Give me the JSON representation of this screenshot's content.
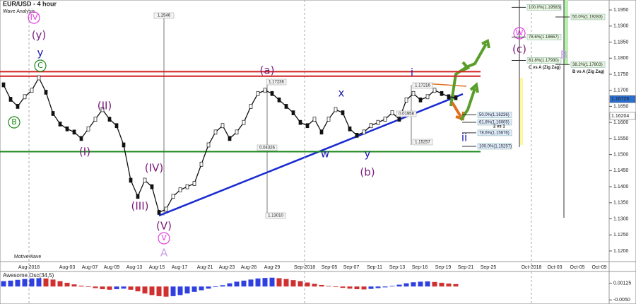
{
  "chart_data": [
    {
      "type": "line",
      "title": "EUR/USD - 4 hour",
      "subtitle": "Wave Analysis",
      "watermark": "MotiveWave",
      "color": "#111111",
      "values": [
        1.1717,
        1.1672,
        1.165,
        1.168,
        1.17,
        1.1739,
        1.1694,
        1.1628,
        1.1595,
        1.158,
        1.157,
        1.155,
        1.158,
        1.161,
        1.164,
        1.161,
        1.159,
        1.153,
        1.142,
        1.137,
        1.142,
        1.14,
        1.132,
        1.133,
        1.137,
        1.139,
        1.14,
        1.141,
        1.147,
        1.153,
        1.157,
        1.159,
        1.155,
        1.157,
        1.16,
        1.165,
        1.169,
        1.17,
        1.169,
        1.167,
        1.165,
        1.163,
        1.16,
        1.159,
        1.161,
        1.157,
        1.161,
        1.164,
        1.163,
        1.158,
        1.156,
        1.157,
        1.159,
        1.16,
        1.161,
        1.163,
        1.161,
        1.167,
        1.169,
        1.167,
        1.168,
        1.17,
        1.169,
        1.168,
        1.1677
      ],
      "ylim": [
        1.1167,
        1.1981
      ],
      "yticks": [
        {
          "value": 1.12,
          "label": "1.1200"
        },
        {
          "value": 1.125,
          "label": "1.1250"
        },
        {
          "value": 1.13,
          "label": "1.1300"
        },
        {
          "value": 1.135,
          "label": "1.1350"
        },
        {
          "value": 1.14,
          "label": "1.1400"
        },
        {
          "value": 1.145,
          "label": "1.1450"
        },
        {
          "value": 1.15,
          "label": "1.1500"
        },
        {
          "value": 1.155,
          "label": "1.1550"
        },
        {
          "value": 1.16,
          "label": "1.1600"
        },
        {
          "value": 1.165,
          "label": "1.1650"
        },
        {
          "value": 1.17,
          "label": "1.1700"
        },
        {
          "value": 1.175,
          "label": "1.1750"
        },
        {
          "value": 1.18,
          "label": "1.1800"
        },
        {
          "value": 1.185,
          "label": "1.1850"
        },
        {
          "value": 1.19,
          "label": "1.1900"
        },
        {
          "value": 1.195,
          "label": "1.1950"
        }
      ],
      "x_labels": [
        "Aug-2018",
        "Aug-03",
        "Aug-07",
        "Aug-09",
        "Aug-13",
        "Aug-15",
        "Aug-17",
        "Aug-21",
        "Aug-23",
        "Aug-26",
        "Aug-29",
        "Sep-2018",
        "Sep-05",
        "Sep-07",
        "Sep-11",
        "Sep-13",
        "Sep-16",
        "Sep-19",
        "Sep-21",
        "Sep-25",
        "Oct-2018",
        "Oct-03",
        "Oct-05",
        "Oct-09"
      ],
      "levels": [
        {
          "value": 1.1758,
          "color": "#d42020"
        },
        {
          "value": 1.1744,
          "color": "#d42020"
        },
        {
          "value": 1.1509,
          "color": "#1a8a1a"
        }
      ],
      "price_tags": [
        {
          "value": 1.16726,
          "label": "1.16726",
          "color": "#2a6fd0"
        },
        {
          "value": 1.16204,
          "label": "1.16204",
          "color": "#ffffff"
        }
      ],
      "measure_labels": [
        "1.2546",
        "1.13010",
        "0.04326",
        "1.17236",
        "1.17216",
        "1.15257",
        "0.01958"
      ],
      "annotations": [
        {
          "text": "IV",
          "color": "#e040e0",
          "circle": true
        },
        {
          "text": "(y)",
          "color": "#7a1a7a",
          "circle": false
        },
        {
          "text": "y",
          "color": "#1a1ab0",
          "circle": false
        },
        {
          "text": "C",
          "color": "#1a8a1a",
          "circle": true
        },
        {
          "text": "B",
          "color": "#1a8a1a",
          "circle": true
        },
        {
          "text": "(I)",
          "color": "#7a1a7a",
          "circle": false
        },
        {
          "text": "(II)",
          "color": "#7a1a7a",
          "circle": false
        },
        {
          "text": "(III)",
          "color": "#7a1a7a",
          "circle": false
        },
        {
          "text": "(IV)",
          "color": "#7a1a7a",
          "circle": false
        },
        {
          "text": "(V)",
          "color": "#7a1a7a",
          "circle": false
        },
        {
          "text": "V",
          "color": "#e040e0",
          "circle": true
        },
        {
          "text": "A",
          "color": "#c8a0e8",
          "circle": false
        },
        {
          "text": "(a)",
          "color": "#7a1a7a",
          "circle": false
        },
        {
          "text": "x",
          "color": "#1a1ab0",
          "circle": false
        },
        {
          "text": "w",
          "color": "#1a1ab0",
          "circle": false
        },
        {
          "text": "y",
          "color": "#1a1ab0",
          "circle": false
        },
        {
          "text": "(b)",
          "color": "#7a1a7a",
          "circle": false
        },
        {
          "text": "i",
          "color": "#1a1ab0",
          "circle": false
        },
        {
          "text": "ii",
          "color": "#1a1ab0",
          "circle": false
        },
        {
          "text": "W",
          "color": "#e040e0",
          "circle": true
        },
        {
          "text": "(c)",
          "color": "#7a1a7a",
          "circle": false
        },
        {
          "text": "B",
          "color": "#c8a0e8",
          "circle": false
        }
      ],
      "fib_groups": [
        {
          "title": "2 vs 1",
          "levels": [
            {
              "value": 1.16236,
              "label": "50.0%(1.16236)"
            },
            {
              "value": 1.16005,
              "label": "61.8%(1.16005)"
            },
            {
              "value": 1.15676,
              "label": "78.6%(1.15676)"
            },
            {
              "value": 1.15257,
              "label": "100.0%(1.15257)"
            }
          ]
        },
        {
          "title": "C vs A (Zig Zag)",
          "levels": [
            {
              "value": 1.19583,
              "label": "100.0%(1.19583)"
            },
            {
              "value": 1.18657,
              "label": "78.6%(1.18657)"
            },
            {
              "value": 1.1793,
              "label": "61.8%(1.17930)"
            }
          ]
        },
        {
          "title": "B vs A (Zig Zag)",
          "levels": [
            {
              "value": 1.19283,
              "label": "50.0%(1.19283)"
            },
            {
              "value": 1.17803,
              "label": "38.2%(1.17803)"
            }
          ]
        }
      ]
    },
    {
      "type": "bar",
      "title": "Awesome Osc(34,5)",
      "up_color": "#3040e0",
      "down_color": "#d03030",
      "values": [
        0.002,
        0.0022,
        0.0025,
        0.0028,
        0.003,
        0.0031,
        0.003,
        0.0026,
        0.002,
        0.0014,
        0.0008,
        0.0003,
        -0.0002,
        -0.0006,
        -0.001,
        -0.0012,
        -0.001,
        -0.0008,
        -0.0012,
        -0.0018,
        -0.0026,
        -0.0032,
        -0.0036,
        -0.0038,
        -0.0036,
        -0.0032,
        -0.0026,
        -0.002,
        -0.0014,
        -0.0008,
        -0.0002,
        0.0005,
        0.0012,
        0.0018,
        0.0022,
        0.0026,
        0.003,
        0.0032,
        0.0033,
        0.0031,
        0.0028,
        0.0024,
        0.002,
        0.0015,
        0.001,
        0.0006,
        0.0002,
        -0.0002,
        -0.0005,
        -0.0008,
        -0.001,
        -0.0011,
        -0.0009,
        -0.0006,
        -0.0003,
        0.0002,
        0.0007,
        0.0012,
        0.0016,
        0.0018,
        0.0019,
        0.0017,
        0.0014,
        0.0011,
        0.0009
      ],
      "ylim": [
        -0.006,
        0.0035
      ],
      "yticks": [
        {
          "value": 0.00125,
          "label": "0.00125"
        },
        {
          "value": -0.005,
          "label": "-0.0050"
        }
      ]
    }
  ]
}
